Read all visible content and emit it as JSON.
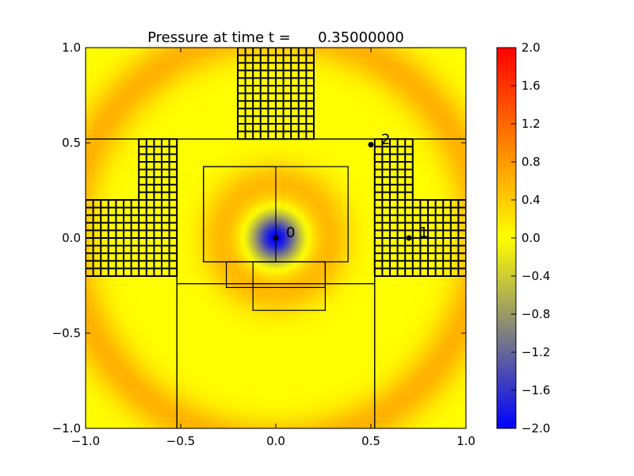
{
  "chart_data": {
    "type": "heatmap",
    "title": "Pressure at time t =      0.35000000",
    "xlim": [
      -1.0,
      1.0
    ],
    "ylim": [
      -1.0,
      1.0
    ],
    "xticks": [
      {
        "v": -1.0,
        "label": "−1.0"
      },
      {
        "v": -0.5,
        "label": "−0.5"
      },
      {
        "v": 0.0,
        "label": "0.0"
      },
      {
        "v": 0.5,
        "label": "0.5"
      },
      {
        "v": 1.0,
        "label": "1.0"
      }
    ],
    "yticks": [
      {
        "v": -1.0,
        "label": "−1.0"
      },
      {
        "v": -0.5,
        "label": "−0.5"
      },
      {
        "v": 0.0,
        "label": "0.0"
      },
      {
        "v": 0.5,
        "label": "0.5"
      },
      {
        "v": 1.0,
        "label": "1.0"
      }
    ],
    "colorbar": {
      "range": [
        -2.0,
        2.0
      ],
      "ticks": [
        {
          "v": 2.0,
          "label": "2.0"
        },
        {
          "v": 1.6,
          "label": "1.6"
        },
        {
          "v": 1.2,
          "label": "1.2"
        },
        {
          "v": 0.8,
          "label": "0.8"
        },
        {
          "v": 0.4,
          "label": "0.4"
        },
        {
          "v": 0.0,
          "label": "0.0"
        },
        {
          "v": -0.4,
          "label": "−0.4"
        },
        {
          "v": -0.8,
          "label": "−0.8"
        },
        {
          "v": -1.2,
          "label": "−1.2"
        },
        {
          "v": -1.6,
          "label": "−1.6"
        },
        {
          "v": -2.0,
          "label": "−2.0"
        }
      ],
      "colormap": [
        {
          "v": -2.0,
          "color": "#0000ff"
        },
        {
          "v": -1.0,
          "color": "#808080"
        },
        {
          "v": 0.0,
          "color": "#ffff00"
        },
        {
          "v": 1.0,
          "color": "#ff8000"
        },
        {
          "v": 2.0,
          "color": "#ff0000"
        }
      ]
    },
    "field": {
      "description_free": true,
      "center": [
        0.0,
        0.0
      ],
      "center_value": -2.0,
      "ring_value": 0.55,
      "ring_radius": 0.28,
      "outer_ring_value": 0.6,
      "outer_ring_radius": 1.08
    },
    "patches": [
      {
        "x": [
          -1.0,
          -0.52
        ],
        "y": [
          -0.2,
          0.52
        ]
      },
      {
        "x": [
          0.52,
          1.0
        ],
        "y": [
          -0.2,
          0.52
        ]
      },
      {
        "x": [
          -0.52,
          0.52
        ],
        "y": [
          -0.24,
          0.52
        ]
      },
      {
        "x": [
          -0.52,
          0.52
        ],
        "y": [
          -1.0,
          -0.24
        ]
      },
      {
        "x": [
          -1.0,
          -0.52
        ],
        "y": [
          -1.0,
          -0.2
        ]
      },
      {
        "x": [
          0.52,
          1.0
        ],
        "y": [
          -1.0,
          -0.2
        ]
      },
      {
        "x": [
          -1.0,
          1.0
        ],
        "y": [
          0.52,
          1.0
        ]
      },
      {
        "x": [
          -0.38,
          0.38
        ],
        "y": [
          -0.125,
          0.375
        ]
      },
      {
        "x": [
          -0.38,
          0.0
        ],
        "y": [
          -0.125,
          0.375
        ]
      },
      {
        "x": [
          -0.26,
          0.26
        ],
        "y": [
          -0.26,
          -0.125
        ]
      },
      {
        "x": [
          -0.12,
          0.26
        ],
        "y": [
          -0.38,
          -0.125
        ]
      }
    ],
    "fine_grids": [
      {
        "x": [
          -0.2,
          0.2
        ],
        "y": [
          0.52,
          1.0
        ],
        "dx": 0.04,
        "dy": 0.04
      },
      {
        "x": [
          -0.72,
          -0.52
        ],
        "y": [
          0.2,
          0.52
        ],
        "dx": 0.04,
        "dy": 0.04
      },
      {
        "x": [
          -1.0,
          -0.52
        ],
        "y": [
          -0.2,
          0.2
        ],
        "dx": 0.04,
        "dy": 0.04
      },
      {
        "x": [
          0.52,
          0.72
        ],
        "y": [
          0.2,
          0.52
        ],
        "dx": 0.04,
        "dy": 0.04
      },
      {
        "x": [
          0.52,
          1.0
        ],
        "y": [
          -0.2,
          0.2
        ],
        "dx": 0.04,
        "dy": 0.04
      }
    ],
    "gauges": [
      {
        "label": "0",
        "x": 0.0,
        "y": 0.0
      },
      {
        "label": "1",
        "x": 0.7,
        "y": 0.0
      },
      {
        "label": "2",
        "x": 0.5,
        "y": 0.49
      }
    ]
  }
}
